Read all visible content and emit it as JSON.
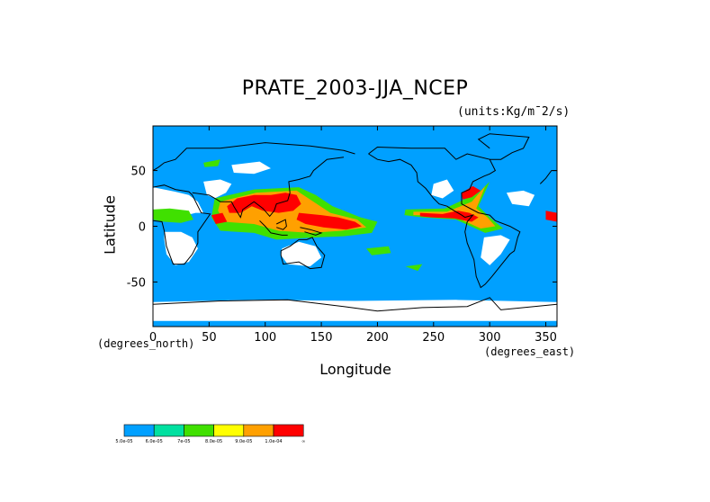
{
  "chart_data": {
    "type": "heatmap",
    "title": "PRATE_2003-JJA_NCEP",
    "units_label": "(units:Kg/m¯2/s)",
    "xlabel": "Longitude",
    "ylabel": "Latitude",
    "x_sublabel": "(degrees_east)",
    "y_sublabel": "(degrees_north)",
    "xlim": [
      0,
      360
    ],
    "ylim": [
      -90,
      90
    ],
    "x_ticks": [
      0,
      50,
      100,
      150,
      200,
      250,
      300,
      350
    ],
    "y_ticks": [
      -50,
      0,
      50
    ],
    "grid": false,
    "colorbar": {
      "placement": "bottom-left",
      "colors": [
        "#00a0ff",
        "#00e0a0",
        "#40e000",
        "#ffff00",
        "#ffa000",
        "#ff0000"
      ],
      "labels": [
        "5.0e-05",
        "6.0e-05",
        "7e-05",
        "8.0e-05",
        "9.0e-05",
        "1.0e-04",
        "∞"
      ]
    },
    "background_color": "#00a0ff",
    "undefined_color": "#ffffff"
  }
}
